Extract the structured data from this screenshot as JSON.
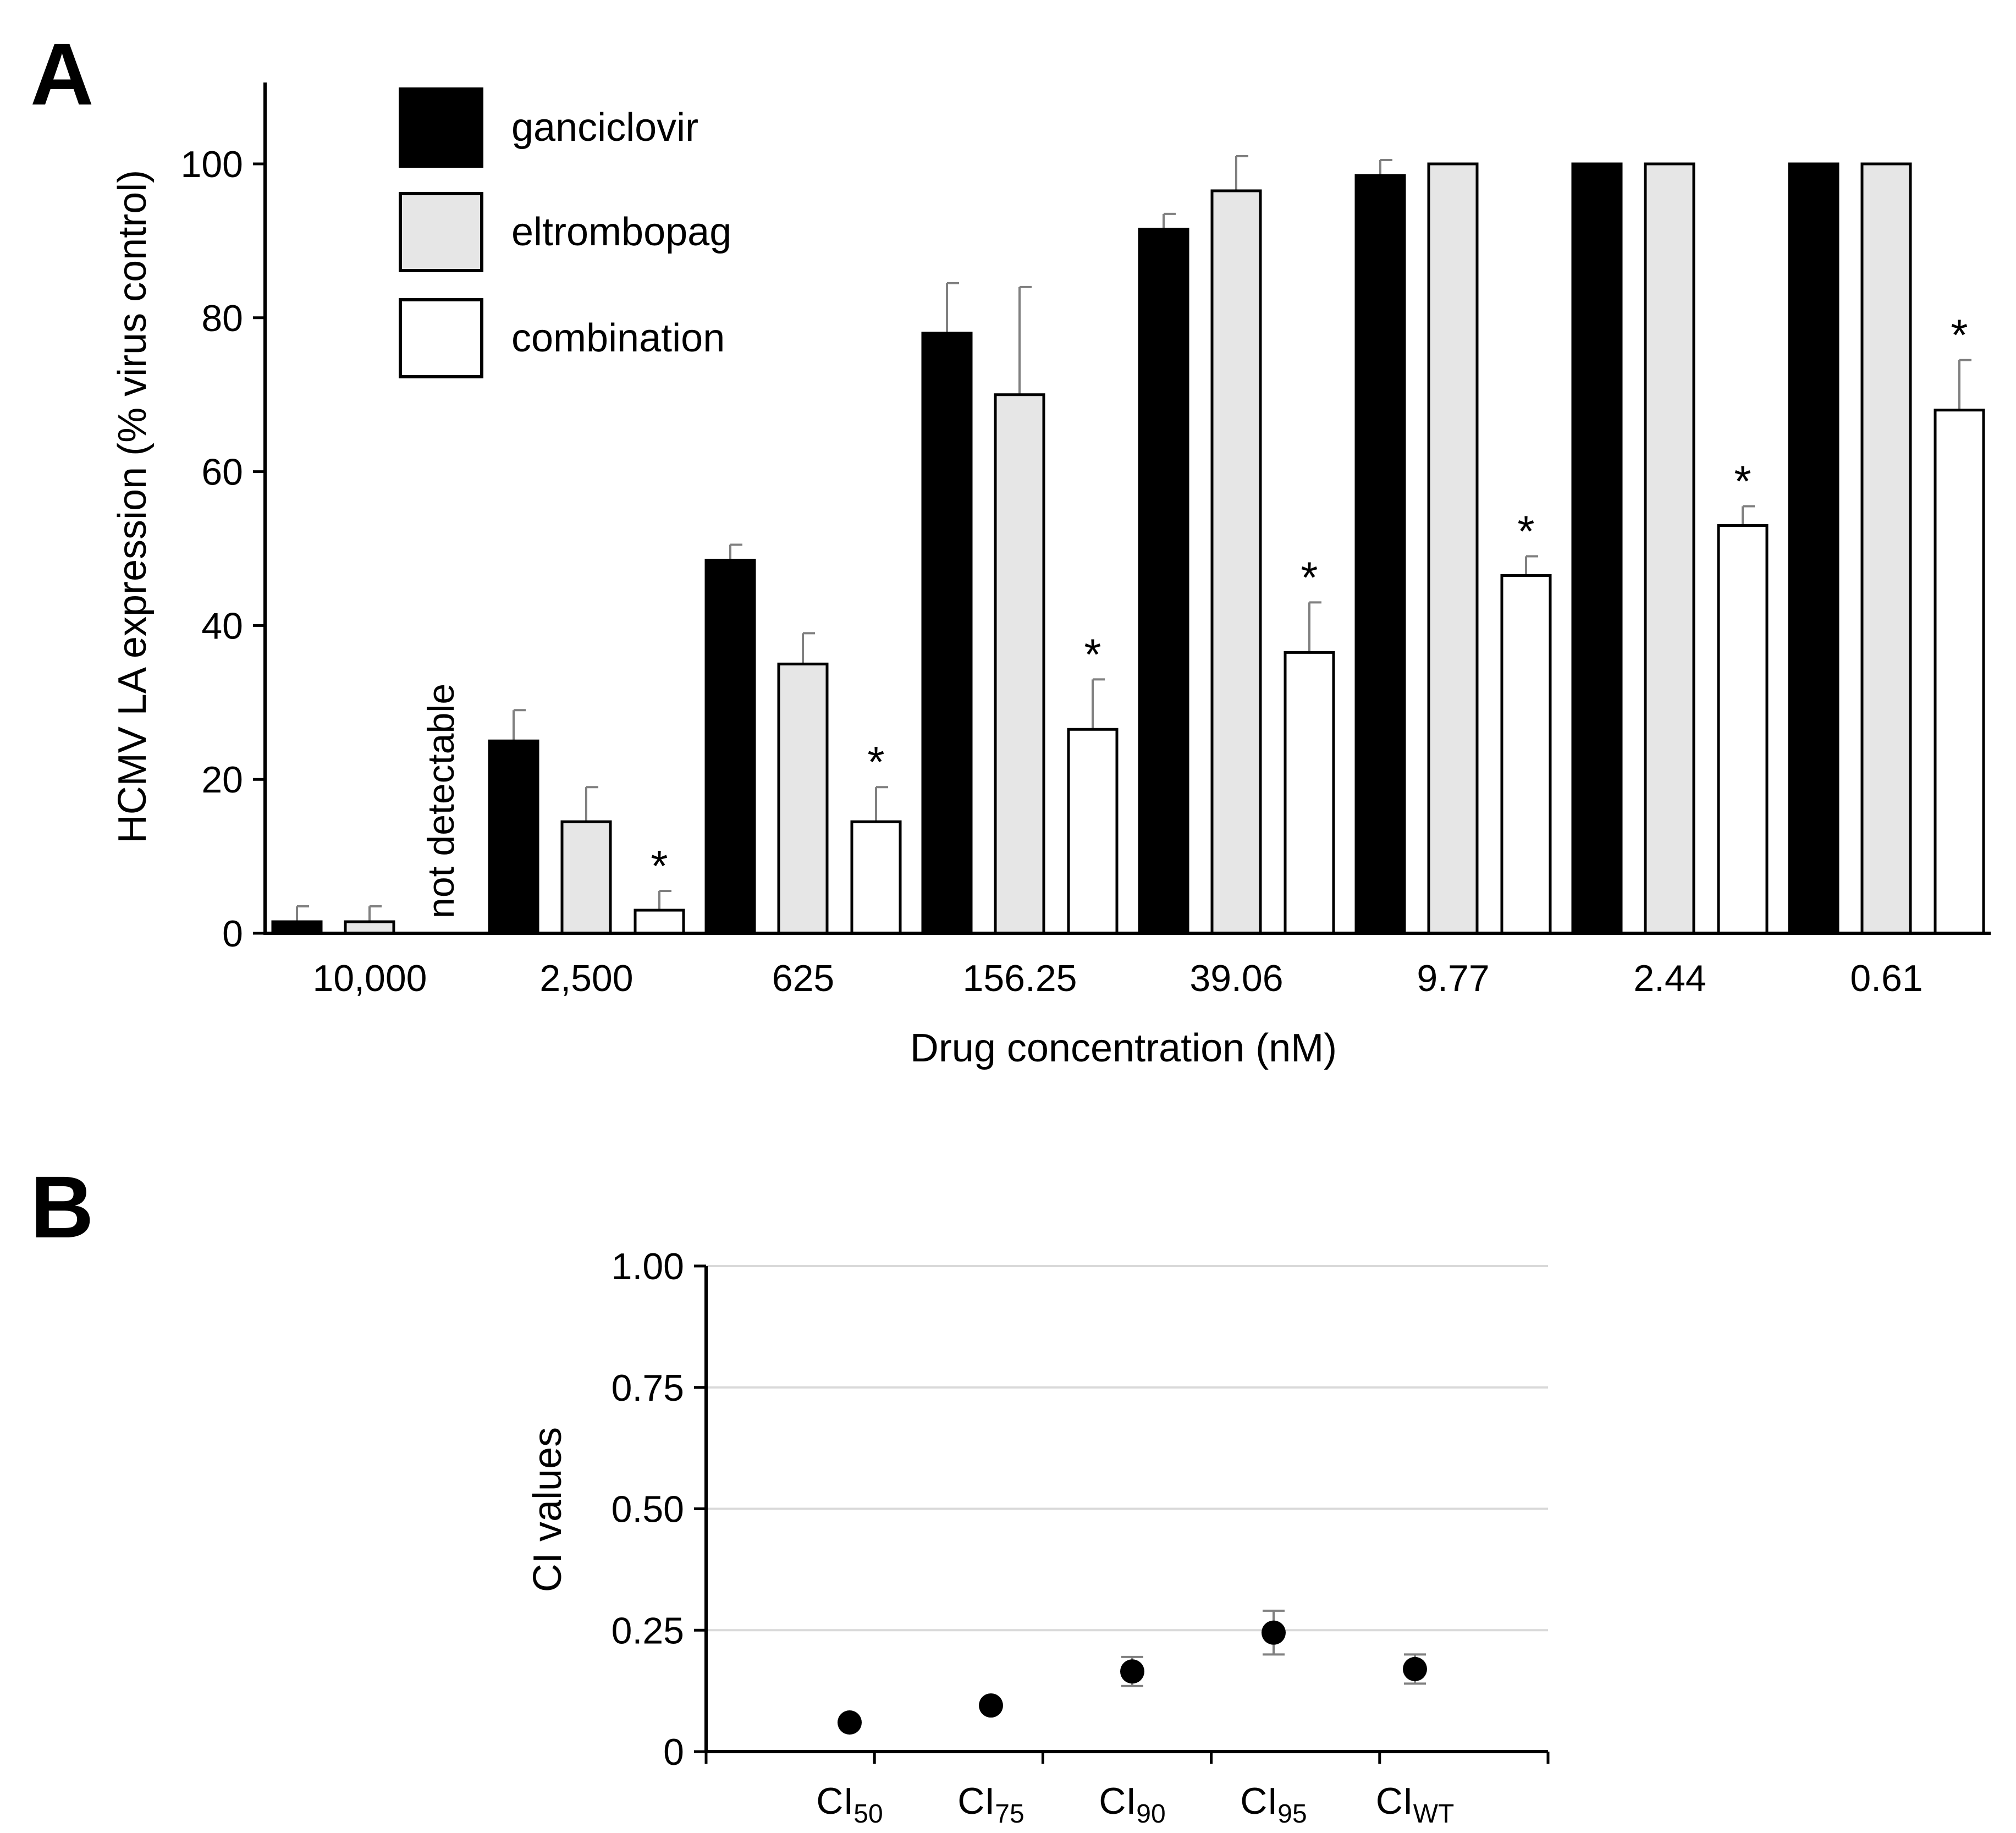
{
  "panels": {
    "A": {
      "letter": "A"
    },
    "B": {
      "letter": "B"
    }
  },
  "colors": {
    "ganciclovir": "#000000",
    "eltrombopag": "#e6e6e6",
    "combination": "#ffffff",
    "error_bar": "#808080",
    "gridline": "#d9d9d9"
  },
  "chart_data": [
    {
      "type": "bar",
      "panel": "A",
      "title": "",
      "xlabel": "Drug concentration (nM)",
      "ylabel": "HCMV LA expression (% virus control)",
      "ylim": [
        0,
        110
      ],
      "yticks": [
        0,
        20,
        40,
        60,
        80,
        100
      ],
      "grid": false,
      "legend_position": "top-left",
      "categories": [
        "10,000",
        "2,500",
        "625",
        "156.25",
        "39.06",
        "9.77",
        "2.44",
        "0.61"
      ],
      "series": [
        {
          "name": "ganciclovir",
          "values": [
            1.5,
            25,
            48.5,
            78,
            91.5,
            98.5,
            100,
            100
          ],
          "errors": [
            2.0,
            4.0,
            2.0,
            6.5,
            2.0,
            2.0,
            0,
            0
          ]
        },
        {
          "name": "eltrombopag",
          "values": [
            1.5,
            14.5,
            35,
            70,
            96.5,
            100,
            100,
            100
          ],
          "errors": [
            2.0,
            4.5,
            4.0,
            14.0,
            4.5,
            0,
            0,
            0
          ]
        },
        {
          "name": "combination",
          "values": [
            null,
            3,
            14.5,
            26.5,
            36.5,
            46.5,
            53,
            68
          ],
          "errors": [
            0,
            2.5,
            4.5,
            6.5,
            6.5,
            2.5,
            2.5,
            6.5
          ]
        }
      ],
      "significance_marks": [
        false,
        true,
        true,
        true,
        true,
        true,
        true,
        true
      ],
      "significance_symbol": "*",
      "annotations": [
        {
          "category": "10,000",
          "series": "combination",
          "text": "not detectable"
        }
      ]
    },
    {
      "type": "scatter",
      "panel": "B",
      "title": "",
      "xlabel": "",
      "ylabel": "CI values",
      "ylim": [
        0,
        1
      ],
      "yticks": [
        "0",
        "0.25",
        "0.50",
        "0.75",
        "1.00"
      ],
      "ytick_values": [
        0,
        0.25,
        0.5,
        0.75,
        1.0
      ],
      "grid": true,
      "categories": [
        {
          "base": "CI",
          "sub": "50"
        },
        {
          "base": "CI",
          "sub": "75"
        },
        {
          "base": "CI",
          "sub": "90"
        },
        {
          "base": "CI",
          "sub": "95"
        },
        {
          "base": "CI",
          "sub": "WT"
        }
      ],
      "values": [
        0.06,
        0.095,
        0.165,
        0.245,
        0.17
      ],
      "errors": [
        0,
        0,
        0.03,
        0.045,
        0.03
      ]
    }
  ]
}
